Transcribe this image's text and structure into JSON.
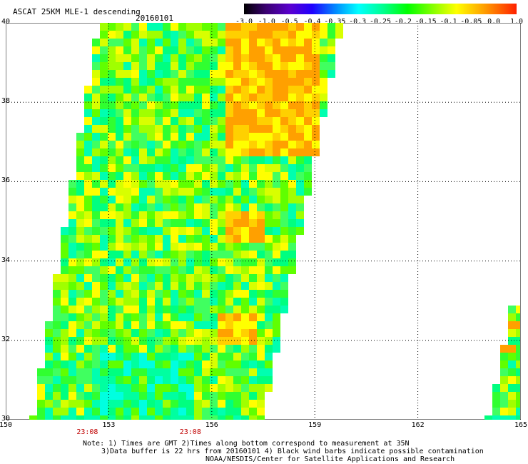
{
  "header": {
    "title": "ASCAT 25KM MLE-1 descending",
    "date": "20160101"
  },
  "colorbar": {
    "labels": [
      "-3.0",
      "-1.0",
      "-0.5",
      "-0.4",
      "-0.35",
      "-0.3",
      "-0.25",
      "-0.2",
      "-0.15",
      "-0.1",
      "-0.05",
      "0.0",
      "1.0"
    ],
    "colors": [
      "#1a0010",
      "#3a0070",
      "#5a00c8",
      "#2000ff",
      "#0060ff",
      "#00b0ff",
      "#00ffff",
      "#00ff90",
      "#00ff00",
      "#90ff00",
      "#ffff00",
      "#ffa000",
      "#ff3000"
    ]
  },
  "map": {
    "lat_labels": [
      "40",
      "38",
      "36",
      "34",
      "32",
      "30"
    ],
    "lon_labels": [
      "150",
      "153",
      "156",
      "159",
      "162",
      "165"
    ],
    "lat_range": [
      30,
      40
    ],
    "lon_range": [
      150,
      165
    ],
    "gridlines": "dotted"
  },
  "times": [
    "23:08",
    "23:08"
  ],
  "footer": {
    "line1": "Note: 1) Times are GMT 2)Times along bottom correspond to measurement at 35N",
    "line2": "3)Data buffer is 22 hrs from 20160101 4) Black wind barbs indicate possible contamination",
    "line3": "NOAA/NESDIS/Center for Satellite Applications and Research"
  }
}
